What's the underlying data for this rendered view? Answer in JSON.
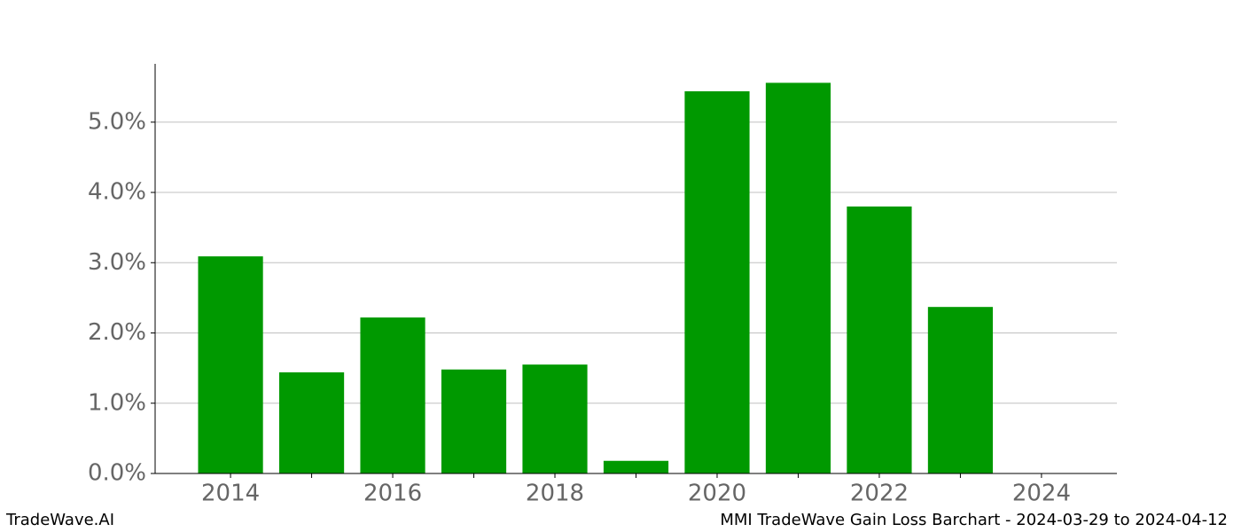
{
  "chart_data": {
    "type": "bar",
    "title": "MMI TradeWave Gain Loss Barchart - 2024-03-29 to 2024-04-12",
    "watermark": "TradeWave.AI",
    "x": [
      2014,
      2015,
      2016,
      2017,
      2018,
      2019,
      2020,
      2021,
      2022,
      2023
    ],
    "values": [
      3.09,
      1.44,
      2.22,
      1.48,
      1.55,
      0.18,
      5.44,
      5.56,
      3.8,
      2.37
    ],
    "color": "#009900",
    "xlim": [
      2013.07,
      2024.93
    ],
    "xticks": [
      2014,
      2016,
      2018,
      2020,
      2022,
      2024
    ],
    "xminorticks": [
      2015,
      2017,
      2019,
      2021,
      2023
    ],
    "ylim": [
      0,
      5.83
    ],
    "yticks": [
      {
        "value": 0,
        "label": "0.0%"
      },
      {
        "value": 1,
        "label": "1.0%"
      },
      {
        "value": 2,
        "label": "2.0%"
      },
      {
        "value": 3,
        "label": "3.0%"
      },
      {
        "value": 4,
        "label": "4.0%"
      },
      {
        "value": 5,
        "label": "5.0%"
      }
    ],
    "grid": true
  }
}
